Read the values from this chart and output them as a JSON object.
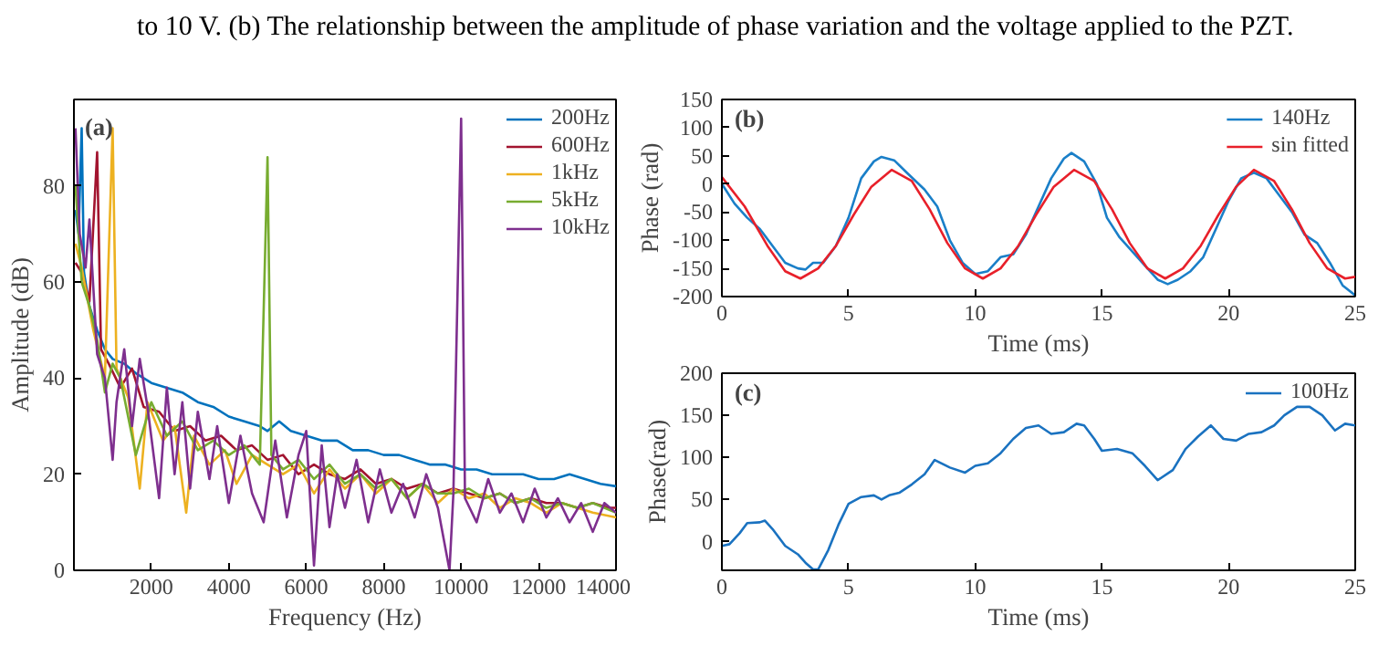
{
  "chart_data": [
    {
      "type": "line",
      "annotations": [
        "to 10 V. (b) The relationship between the amplitude of phase variation and the voltage applied to the PZT.",
        "(a)"
      ],
      "xlabel": "Frequency (Hz)",
      "ylabel": "Amplitude (dB)",
      "xlim": [
        0,
        14000
      ],
      "ylim": [
        0,
        98
      ],
      "xticks": [
        2000,
        4000,
        6000,
        8000,
        10000,
        12000,
        14000
      ],
      "yticks": [
        0,
        20,
        40,
        60,
        80
      ],
      "legend": "top right",
      "series": [
        {
          "name": "200Hz",
          "color": "#0072bd",
          "x": [
            40,
            120,
            200,
            260,
            400,
            600,
            800,
            1000,
            1300,
            1600,
            2000,
            2400,
            2800,
            3200,
            3600,
            4000,
            4400,
            4800,
            5000,
            5300,
            5600,
            6000,
            6400,
            6800,
            7200,
            7600,
            8000,
            8400,
            8800,
            9200,
            9600,
            10000,
            10400,
            10800,
            11200,
            11600,
            12000,
            12400,
            12800,
            13200,
            13600,
            14000
          ],
          "values": [
            75,
            70,
            92,
            62,
            55,
            50,
            46,
            44,
            43,
            41,
            39,
            38,
            37,
            35,
            34,
            32,
            31,
            30,
            29,
            31,
            29,
            28,
            27,
            27,
            25,
            25,
            24,
            24,
            23,
            22,
            22,
            21,
            21,
            20,
            20,
            20,
            19,
            19,
            20,
            19,
            18,
            17.5
          ]
        },
        {
          "name": "600Hz",
          "color": "#a2142f",
          "x": [
            40,
            200,
            400,
            600,
            700,
            900,
            1200,
            1500,
            1800,
            2200,
            2600,
            3000,
            3400,
            3800,
            4200,
            4600,
            5000,
            5400,
            5800,
            6200,
            6600,
            7000,
            7400,
            7800,
            8200,
            8600,
            9000,
            9400,
            9800,
            10200,
            10600,
            11000,
            11400,
            11800,
            12200,
            12600,
            13000,
            13400,
            13800,
            14000
          ],
          "values": [
            64,
            62,
            56,
            87,
            46,
            43,
            38,
            42,
            34,
            33,
            29,
            30,
            27,
            28,
            25,
            26,
            23,
            24,
            20,
            22,
            20,
            19,
            21,
            18,
            19,
            17,
            18,
            16,
            17,
            16,
            15,
            16,
            14,
            15,
            14,
            14,
            13,
            14,
            13,
            13
          ]
        },
        {
          "name": "1kHz",
          "color": "#edb120",
          "x": [
            40,
            200,
            500,
            800,
            1000,
            1100,
            1400,
            1700,
            1900,
            2300,
            2600,
            2900,
            3100,
            3500,
            3900,
            4200,
            4600,
            5000,
            5400,
            5800,
            6200,
            6600,
            7000,
            7400,
            7800,
            8200,
            8600,
            9000,
            9400,
            9800,
            10200,
            10600,
            11000,
            11400,
            11800,
            12200,
            12600,
            13000,
            13400,
            14000
          ],
          "values": [
            68,
            63,
            50,
            40,
            92,
            42,
            36,
            17,
            35,
            27,
            30,
            12,
            28,
            22,
            25,
            18,
            24,
            22,
            20,
            22,
            16,
            21,
            17,
            20,
            16,
            19,
            15,
            18,
            14,
            17,
            15,
            16,
            13,
            15,
            14,
            12,
            14,
            13,
            12,
            11
          ]
        },
        {
          "name": "5kHz",
          "color": "#77ac30",
          "x": [
            40,
            200,
            400,
            600,
            800,
            1000,
            1200,
            1600,
            2000,
            2400,
            2800,
            3200,
            3600,
            4000,
            4400,
            4800,
            5000,
            5100,
            5400,
            5800,
            6200,
            6600,
            7000,
            7400,
            7800,
            8200,
            8600,
            9000,
            9400,
            9800,
            10200,
            10600,
            11000,
            11400,
            11800,
            12200,
            12600,
            13000,
            13400,
            14000
          ],
          "values": [
            80,
            60,
            55,
            48,
            37,
            43,
            40,
            24,
            35,
            28,
            31,
            25,
            27,
            24,
            26,
            22,
            86,
            24,
            21,
            23,
            19,
            22,
            18,
            20,
            17,
            19,
            15,
            18,
            16,
            16,
            17,
            15,
            16,
            14,
            15,
            13,
            14,
            13,
            14,
            12
          ]
        },
        {
          "name": "10kHz",
          "color": "#7e2f8e",
          "x": [
            40,
            150,
            300,
            400,
            600,
            800,
            1000,
            1100,
            1300,
            1500,
            1700,
            1900,
            2200,
            2400,
            2600,
            2800,
            3000,
            3200,
            3500,
            3700,
            4000,
            4300,
            4600,
            4900,
            5200,
            5500,
            5800,
            6000,
            6200,
            6400,
            6600,
            6800,
            7000,
            7300,
            7600,
            7900,
            8200,
            8500,
            8800,
            9100,
            9400,
            9700,
            9800,
            10000,
            10100,
            10400,
            10700,
            11000,
            11300,
            11600,
            11900,
            12200,
            12500,
            12800,
            13100,
            13400,
            13700,
            14000
          ],
          "values": [
            92,
            70,
            63,
            73,
            45,
            40,
            23,
            35,
            46,
            30,
            44,
            34,
            15,
            38,
            20,
            35,
            17,
            33,
            19,
            30,
            14,
            28,
            16,
            10,
            27,
            11,
            24,
            29,
            1,
            26,
            9,
            20,
            13,
            23,
            10,
            21,
            12,
            18,
            11,
            20,
            13,
            0,
            16,
            94,
            15,
            10,
            19,
            12,
            16,
            10,
            17,
            11,
            15,
            10,
            14,
            8,
            14,
            12
          ]
        }
      ]
    },
    {
      "type": "line",
      "annotations": [
        "(b)"
      ],
      "xlabel": "Time (ms)",
      "ylabel": "Phase (rad)",
      "xlim": [
        0,
        25
      ],
      "ylim": [
        -200,
        150
      ],
      "xticks": [
        0,
        5,
        10,
        15,
        20,
        25
      ],
      "yticks": [
        -200,
        -150,
        -100,
        -50,
        0,
        50,
        100,
        150
      ],
      "legend": "top right",
      "series": [
        {
          "name": "140Hz",
          "color": "#1a7fc8",
          "x": [
            0,
            0.5,
            1,
            1.5,
            2,
            2.5,
            3,
            3.3,
            3.6,
            4,
            4.5,
            5,
            5.5,
            6,
            6.3,
            6.8,
            7.3,
            8,
            8.5,
            9,
            9.5,
            10,
            10.5,
            11,
            11.5,
            12,
            12.5,
            13,
            13.5,
            13.8,
            14.3,
            14.8,
            15.2,
            15.7,
            16.2,
            16.7,
            17.2,
            17.6,
            18,
            18.5,
            19,
            19.5,
            20,
            20.5,
            21,
            21.5,
            22,
            22.5,
            23,
            23.5,
            24,
            24.5,
            25
          ],
          "values": [
            0,
            -35,
            -60,
            -80,
            -110,
            -140,
            -150,
            -152,
            -140,
            -140,
            -110,
            -60,
            10,
            40,
            48,
            42,
            20,
            -10,
            -40,
            -100,
            -140,
            -160,
            -155,
            -130,
            -125,
            -90,
            -40,
            10,
            45,
            55,
            40,
            0,
            -60,
            -95,
            -120,
            -145,
            -170,
            -178,
            -170,
            -155,
            -130,
            -80,
            -30,
            10,
            20,
            10,
            -20,
            -50,
            -90,
            -105,
            -140,
            -180,
            -198
          ]
        },
        {
          "name": "sin fitted",
          "color": "#e8202a",
          "x": [
            0,
            0.9,
            1.8,
            2.5,
            3.1,
            3.8,
            4.5,
            5.2,
            5.9,
            6.7,
            7.5,
            8.2,
            8.9,
            9.6,
            10.3,
            11,
            11.7,
            12.4,
            13.1,
            13.9,
            14.7,
            15.4,
            16.1,
            16.8,
            17.5,
            18.2,
            18.9,
            19.6,
            20.3,
            21,
            21.8,
            22.5,
            23.2,
            23.9,
            24.6,
            25
          ],
          "values": [
            12,
            -40,
            -110,
            -155,
            -168,
            -150,
            -110,
            -55,
            -5,
            25,
            5,
            -45,
            -105,
            -150,
            -168,
            -150,
            -110,
            -55,
            -5,
            25,
            5,
            -45,
            -105,
            -150,
            -168,
            -150,
            -110,
            -55,
            -5,
            25,
            5,
            -45,
            -105,
            -150,
            -168,
            -165
          ]
        }
      ]
    },
    {
      "type": "line",
      "annotations": [
        "(c)"
      ],
      "xlabel": "Time (ms)",
      "ylabel": "Phase(rad)",
      "xlim": [
        0,
        25
      ],
      "ylim": [
        -34,
        200
      ],
      "xticks": [
        0,
        5,
        10,
        15,
        20,
        25
      ],
      "yticks": [
        0,
        50,
        100,
        150,
        200
      ],
      "legend": "top right",
      "series": [
        {
          "name": "100Hz",
          "color": "#1a72c0",
          "x": [
            0,
            0.3,
            0.7,
            1,
            1.5,
            1.7,
            2,
            2.5,
            3,
            3.3,
            3.6,
            3.8,
            4.2,
            4.6,
            5,
            5.5,
            6,
            6.3,
            6.6,
            7,
            7.5,
            8,
            8.4,
            9,
            9.6,
            10,
            10.5,
            11,
            11.5,
            12,
            12.5,
            13,
            13.5,
            14,
            14.3,
            14.7,
            15,
            15.6,
            16.2,
            16.7,
            17.2,
            17.8,
            18.3,
            18.8,
            19.3,
            19.8,
            20.3,
            20.8,
            21.3,
            21.8,
            22.2,
            22.7,
            23.2,
            23.7,
            24.2,
            24.6,
            25
          ],
          "values": [
            -5,
            -3,
            10,
            22,
            23,
            25,
            15,
            -5,
            -15,
            -25,
            -33,
            -33,
            -10,
            20,
            45,
            53,
            55,
            50,
            55,
            58,
            68,
            80,
            97,
            88,
            82,
            90,
            93,
            105,
            122,
            135,
            138,
            128,
            130,
            140,
            138,
            122,
            108,
            110,
            105,
            90,
            73,
            85,
            110,
            125,
            138,
            122,
            120,
            128,
            130,
            138,
            150,
            160,
            160,
            150,
            132,
            140,
            138
          ]
        }
      ]
    }
  ]
}
